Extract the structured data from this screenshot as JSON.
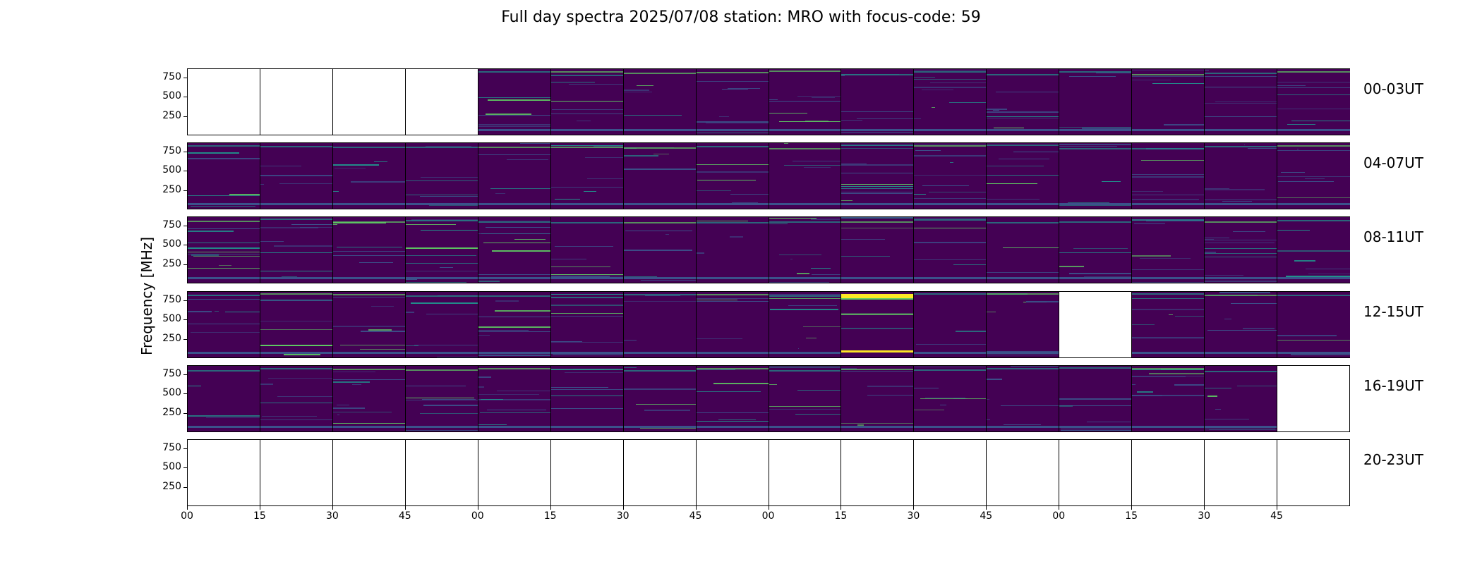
{
  "chart_data": {
    "type": "heatmap",
    "title": "Full day spectra 2025/07/08 station: MRO with focus-code: 59",
    "ylabel": "Frequency [MHz]",
    "yticks": [
      "250",
      "500",
      "750"
    ],
    "ytick_values": [
      250,
      500,
      750
    ],
    "ylim": [
      0,
      870
    ],
    "xticks": [
      "00",
      "15",
      "30",
      "45",
      "00",
      "15",
      "30",
      "45",
      "00",
      "15",
      "30",
      "45",
      "00",
      "15",
      "30",
      "45"
    ],
    "colormap": "viridis",
    "row_labels": [
      "00-03UT",
      "04-07UT",
      "08-11UT",
      "12-15UT",
      "16-19UT",
      "20-23UT"
    ],
    "panels_per_row": 16,
    "rows": [
      {
        "label": "00-03UT",
        "has_data": [
          0,
          0,
          0,
          0,
          1,
          1,
          1,
          1,
          1,
          1,
          1,
          1,
          1,
          1,
          1,
          1
        ]
      },
      {
        "label": "04-07UT",
        "has_data": [
          1,
          1,
          1,
          1,
          1,
          1,
          1,
          1,
          1,
          1,
          1,
          1,
          1,
          1,
          1,
          1
        ]
      },
      {
        "label": "08-11UT",
        "has_data": [
          1,
          1,
          1,
          1,
          1,
          1,
          1,
          1,
          1,
          1,
          1,
          1,
          1,
          1,
          1,
          1
        ]
      },
      {
        "label": "12-15UT",
        "has_data": [
          1,
          1,
          1,
          1,
          1,
          1,
          1,
          1,
          1,
          2,
          1,
          1,
          0,
          1,
          1,
          1
        ]
      },
      {
        "label": "16-19UT",
        "has_data": [
          1,
          1,
          1,
          1,
          1,
          1,
          1,
          1,
          1,
          1,
          1,
          1,
          1,
          1,
          1,
          0
        ]
      },
      {
        "label": "20-23UT",
        "has_data": [
          0,
          0,
          0,
          0,
          0,
          0,
          0,
          0,
          0,
          0,
          0,
          0,
          0,
          0,
          0,
          0
        ]
      }
    ],
    "colors": {
      "background": "#440154",
      "mid": "#3b528b",
      "teal": "#21918c",
      "green": "#5ec962",
      "yellow": "#fde725"
    }
  }
}
